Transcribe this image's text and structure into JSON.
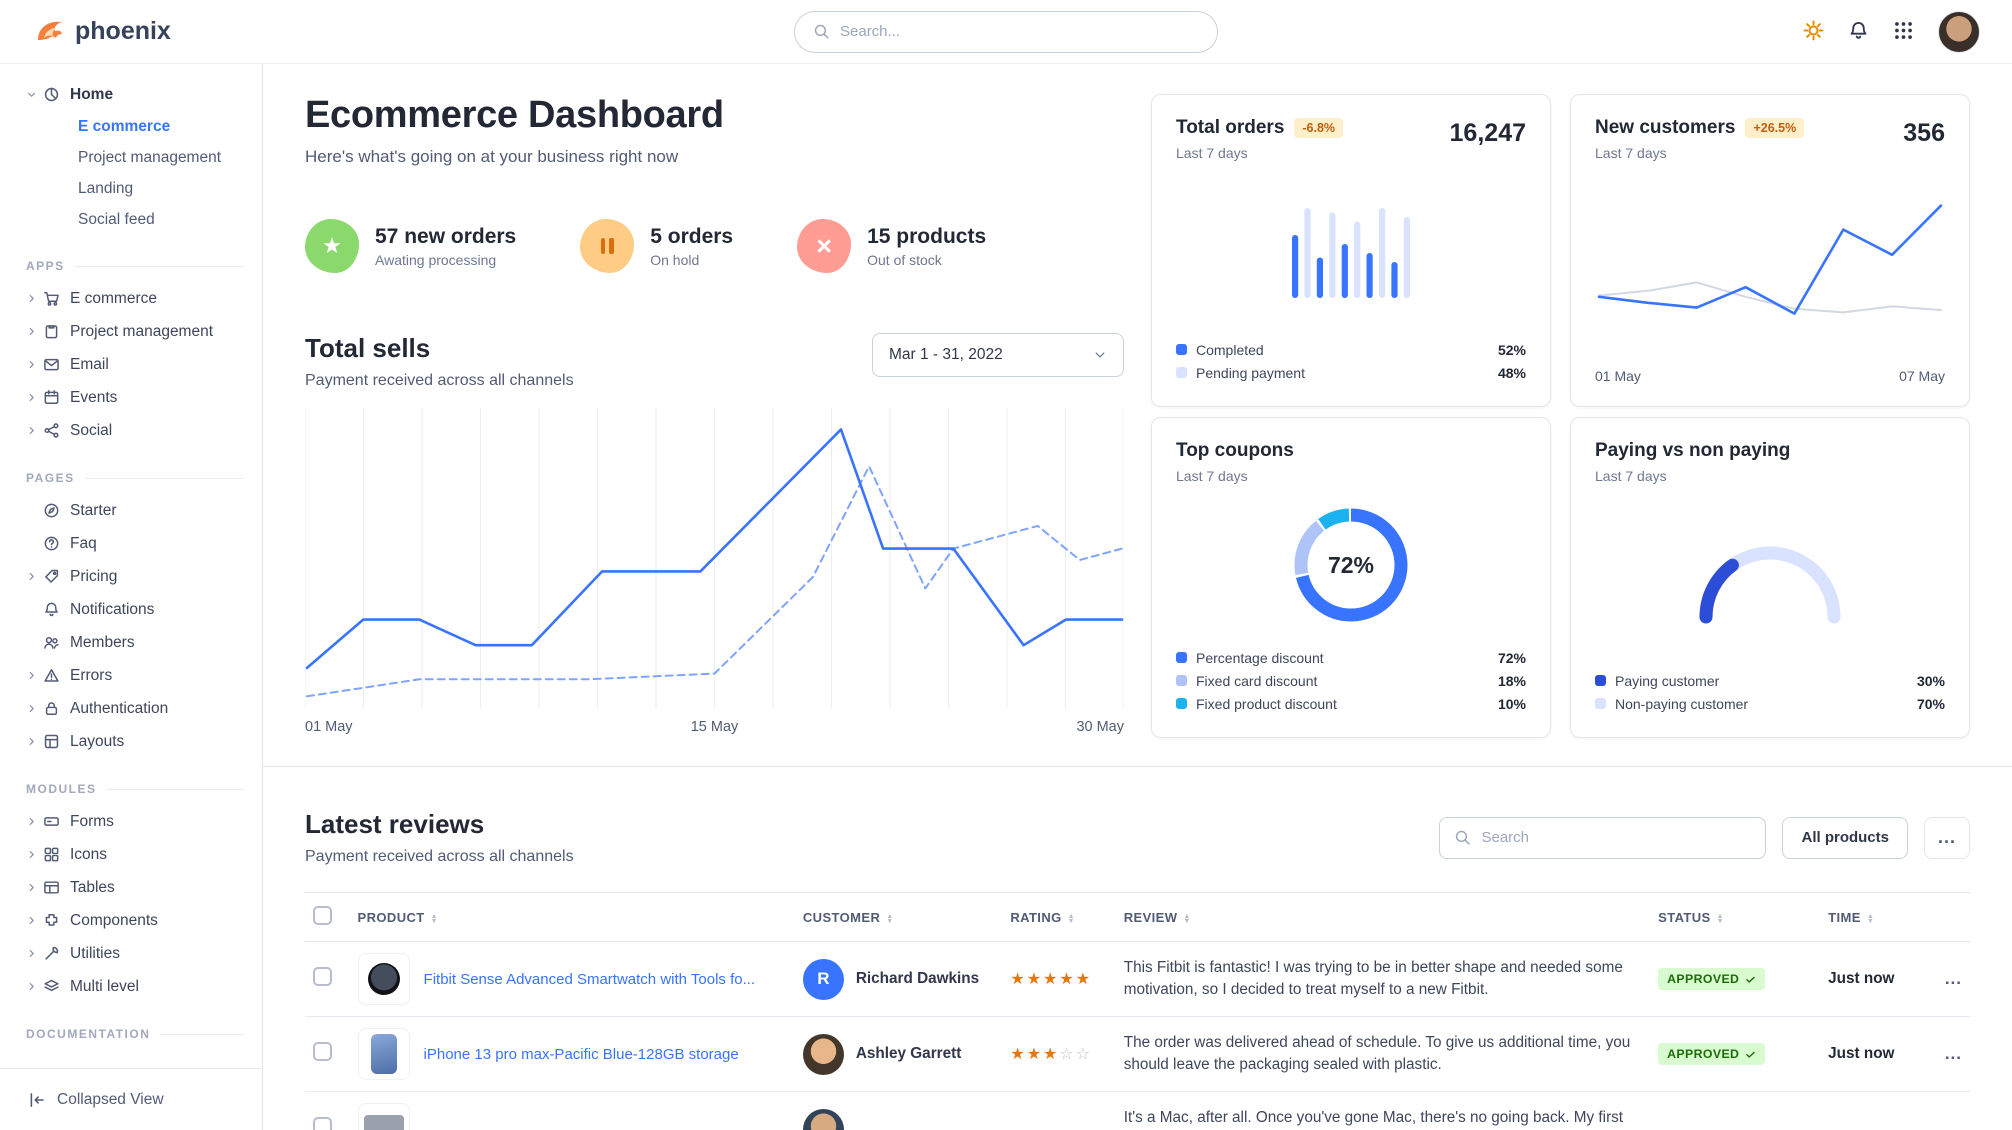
{
  "app": {
    "brand": "phoenix"
  },
  "topbar": {
    "search_placeholder": "Search..."
  },
  "sidebar": {
    "collapse_label": "Collapsed View",
    "groups": [
      {
        "section": null,
        "items": [
          {
            "label": "Home",
            "icon": "pie-chart",
            "caret": true,
            "children": [
              {
                "label": "E commerce",
                "active": true
              },
              {
                "label": "Project management",
                "active": false
              },
              {
                "label": "Landing",
                "active": false
              },
              {
                "label": "Social feed",
                "active": false
              }
            ]
          }
        ]
      },
      {
        "section": "APPS",
        "items": [
          {
            "label": "E commerce",
            "icon": "shopping-cart",
            "caret": true
          },
          {
            "label": "Project management",
            "icon": "clipboard",
            "caret": true
          },
          {
            "label": "Email",
            "icon": "envelope",
            "caret": true
          },
          {
            "label": "Events",
            "icon": "calendar",
            "caret": true
          },
          {
            "label": "Social",
            "icon": "share-nodes",
            "caret": true
          }
        ]
      },
      {
        "section": "PAGES",
        "items": [
          {
            "label": "Starter",
            "icon": "compass",
            "caret": false
          },
          {
            "label": "Faq",
            "icon": "circle-question",
            "caret": false
          },
          {
            "label": "Pricing",
            "icon": "tag",
            "caret": true
          },
          {
            "label": "Notifications",
            "icon": "bell",
            "caret": false
          },
          {
            "label": "Members",
            "icon": "users",
            "caret": false
          },
          {
            "label": "Errors",
            "icon": "triangle-alert",
            "caret": true
          },
          {
            "label": "Authentication",
            "icon": "lock",
            "caret": true
          },
          {
            "label": "Layouts",
            "icon": "layout",
            "caret": true
          }
        ]
      },
      {
        "section": "MODULES",
        "items": [
          {
            "label": "Forms",
            "icon": "form-input",
            "caret": true
          },
          {
            "label": "Icons",
            "icon": "icons-grid",
            "caret": true
          },
          {
            "label": "Tables",
            "icon": "table",
            "caret": true
          },
          {
            "label": "Components",
            "icon": "puzzle",
            "caret": true
          },
          {
            "label": "Utilities",
            "icon": "wrench",
            "caret": true
          },
          {
            "label": "Multi level",
            "icon": "layers",
            "caret": true
          }
        ]
      },
      {
        "section": "DOCUMENTATION",
        "items": []
      }
    ]
  },
  "page": {
    "title": "Ecommerce Dashboard",
    "subtitle": "Here's what's going on at your business right now"
  },
  "stats": [
    {
      "value": "57 new orders",
      "caption": "Awating processing",
      "icon": "star",
      "tone": "success"
    },
    {
      "value": "5 orders",
      "caption": "On hold",
      "icon": "pause",
      "tone": "warning"
    },
    {
      "value": "15 products",
      "caption": "Out of stock",
      "icon": "cross",
      "tone": "danger"
    }
  ],
  "total_sells": {
    "title": "Total sells",
    "subtitle": "Payment received across all channels",
    "date_range": "Mar 1 - 31, 2022"
  },
  "cards": {
    "total_orders": {
      "title": "Total orders",
      "badge": "-6.8%",
      "value": "16,247",
      "period": "Last 7 days",
      "legend": [
        {
          "label": "Completed",
          "value": "52%",
          "color": "#3874ff"
        },
        {
          "label": "Pending payment",
          "value": "48%",
          "color": "#d9e2ff"
        }
      ]
    },
    "new_customers": {
      "title": "New customers",
      "badge": "+26.5%",
      "value": "356",
      "period": "Last 7 days"
    },
    "top_coupons": {
      "title": "Top coupons",
      "period": "Last 7 days"
    },
    "paying": {
      "title": "Paying vs non paying",
      "period": "Last 7 days"
    }
  },
  "reviews": {
    "title": "Latest reviews",
    "subtitle": "Payment received across all channels",
    "search_placeholder": "Search",
    "filter_button": "All products",
    "more_button": "...",
    "columns": [
      "PRODUCT",
      "CUSTOMER",
      "RATING",
      "REVIEW",
      "STATUS",
      "TIME"
    ],
    "rows": [
      {
        "product": "Fitbit Sense Advanced Smartwatch with Tools fo...",
        "product_image": "smartwatch",
        "customer": "Richard Dawkins",
        "customer_avatar": {
          "type": "initial",
          "text": "R"
        },
        "rating": 5,
        "review": "This Fitbit is fantastic! I was trying to be in better shape and needed some motivation, so I decided to treat myself to a new Fitbit.",
        "status": "APPROVED",
        "time": "Just now"
      },
      {
        "product": "iPhone 13 pro max-Pacific Blue-128GB storage",
        "product_image": "phone",
        "customer": "Ashley Garrett",
        "customer_avatar": {
          "type": "photo",
          "variant": "female"
        },
        "rating": 3,
        "review": "The order was delivered ahead of schedule. To give us additional time, you should leave the packaging sealed with plastic.",
        "status": "APPROVED",
        "time": "Just now"
      },
      {
        "product": "",
        "product_image": "laptop",
        "customer": "",
        "customer_avatar": {
          "type": "photo",
          "variant": "male"
        },
        "rating": null,
        "review": "It's a Mac, after all. Once you've gone Mac, there's no going back. My first Mac lasted",
        "status": "",
        "time": ""
      }
    ]
  },
  "chart_data": [
    {
      "id": "total_sells",
      "type": "line",
      "title": "Total sells",
      "x_ticks": [
        "01 May",
        "15 May",
        "30 May"
      ],
      "x_range_days": [
        1,
        30
      ],
      "ylim": [
        0,
        100
      ],
      "grid": "vertical",
      "series": [
        {
          "name": "previous period",
          "style": "dashed",
          "color": "#7ea4ff",
          "points": [
            [
              1,
              2
            ],
            [
              5,
              8
            ],
            [
              11,
              8
            ],
            [
              15.5,
              10
            ],
            [
              19,
              44
            ],
            [
              21,
              83
            ],
            [
              23,
              40
            ],
            [
              24,
              54
            ],
            [
              27,
              62
            ],
            [
              28.5,
              50
            ],
            [
              30,
              54
            ]
          ]
        },
        {
          "name": "current period",
          "style": "solid",
          "color": "#3874ff",
          "points": [
            [
              1,
              12
            ],
            [
              3,
              29
            ],
            [
              5,
              29
            ],
            [
              7,
              20
            ],
            [
              9,
              20
            ],
            [
              11.5,
              46
            ],
            [
              15,
              46
            ],
            [
              20,
              96
            ],
            [
              21.5,
              54
            ],
            [
              24,
              54
            ],
            [
              26.5,
              20
            ],
            [
              28,
              29
            ],
            [
              30,
              29
            ]
          ]
        }
      ]
    },
    {
      "id": "total_orders_bars",
      "type": "bar",
      "ylim": [
        0,
        100
      ],
      "colors": {
        "completed": "#3874ff",
        "pending": "#d9e2ff"
      },
      "bars": [
        {
          "series": "completed",
          "value": 70
        },
        {
          "series": "pending",
          "value": 100
        },
        {
          "series": "completed",
          "value": 45
        },
        {
          "series": "pending",
          "value": 95
        },
        {
          "series": "completed",
          "value": 60
        },
        {
          "series": "pending",
          "value": 85
        },
        {
          "series": "completed",
          "value": 50
        },
        {
          "series": "pending",
          "value": 100
        },
        {
          "series": "completed",
          "value": 40
        },
        {
          "series": "pending",
          "value": 90
        }
      ]
    },
    {
      "id": "new_customers",
      "type": "line",
      "x_labels": [
        "01 May",
        "07 May"
      ],
      "ylim": [
        0,
        100
      ],
      "series": [
        {
          "name": "previous period",
          "color": "#d3d7e2",
          "values": [
            22,
            26,
            33,
            21,
            11,
            8,
            13,
            10
          ]
        },
        {
          "name": "new customers",
          "color": "#3874ff",
          "values": [
            21,
            16,
            12,
            29,
            7,
            77,
            56,
            97
          ]
        }
      ]
    },
    {
      "id": "top_coupons_donut",
      "type": "donut",
      "center_label": "72%",
      "slices": [
        {
          "label": "Percentage discount",
          "value": 72,
          "color": "#3874ff"
        },
        {
          "label": "Fixed card discount",
          "value": 18,
          "color": "#aec4f9"
        },
        {
          "label": "Fixed product discount",
          "value": 10,
          "color": "#1ab3f0"
        }
      ]
    },
    {
      "id": "paying_gauge",
      "type": "gauge",
      "segments": [
        {
          "label": "Paying customer",
          "value": 30,
          "color": "#2c4ed6"
        },
        {
          "label": "Non-paying customer",
          "value": 70,
          "color": "#d9e2ff"
        }
      ]
    }
  ]
}
